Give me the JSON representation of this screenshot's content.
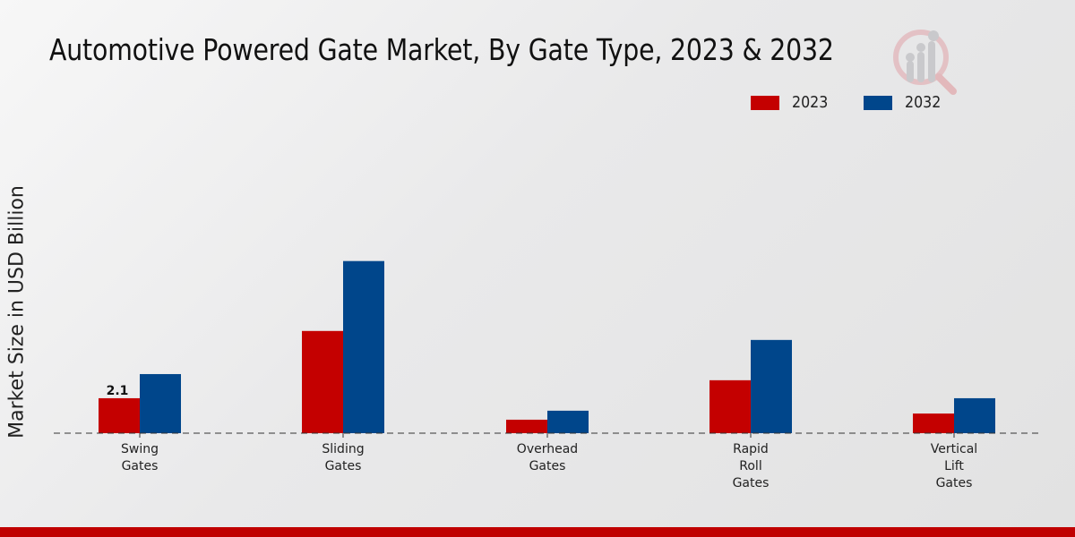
{
  "chart_data": {
    "type": "bar",
    "title": "Automotive Powered Gate Market, By Gate Type, 2023 & 2032",
    "xlabel": "",
    "ylabel": "Market Size in USD Billion",
    "categories": [
      [
        "Swing",
        "Gates"
      ],
      [
        "Sliding",
        "Gates"
      ],
      [
        "Overhead",
        "Gates"
      ],
      [
        "Rapid",
        "Roll",
        "Gates"
      ],
      [
        "Vertical",
        "Lift",
        "Gates"
      ]
    ],
    "series": [
      {
        "name": "2023",
        "color": "#c40000",
        "values": [
          2.1,
          6.14,
          0.81,
          3.18,
          1.18
        ]
      },
      {
        "name": "2032",
        "color": "#00468b",
        "values": [
          3.55,
          10.34,
          1.35,
          5.6,
          2.1
        ]
      }
    ],
    "data_labels": [
      {
        "series": 0,
        "index": 0,
        "text": "2.1"
      }
    ],
    "ylim": [
      0,
      11.5
    ],
    "grid": false,
    "legend": "top-right"
  },
  "colors": {
    "accent_bar": "#c00000"
  }
}
